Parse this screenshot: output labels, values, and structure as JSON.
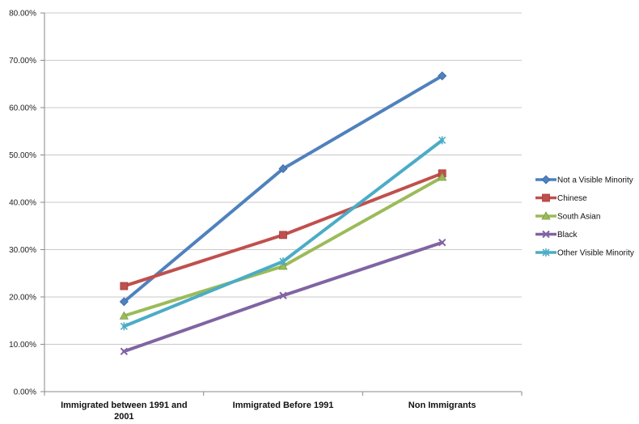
{
  "chart_data": {
    "type": "line",
    "title": "",
    "xlabel": "",
    "ylabel": "",
    "ylim": [
      0,
      0.8
    ],
    "y_ticks": [
      "0.00%",
      "10.00%",
      "20.00%",
      "30.00%",
      "40.00%",
      "50.00%",
      "60.00%",
      "70.00%",
      "80.00%"
    ],
    "categories": [
      [
        "Immigrated between 1991 and",
        "2001"
      ],
      [
        "Immigrated Before  1991"
      ],
      [
        "Non Immigrants"
      ]
    ],
    "grid": true,
    "legend_position": "right",
    "series": [
      {
        "name": "Not a Visible Minority",
        "color": "#4f81bd",
        "marker": "diamond",
        "values": [
          0.19,
          0.471,
          0.667
        ]
      },
      {
        "name": "Chinese",
        "color": "#c0504d",
        "marker": "square",
        "values": [
          0.223,
          0.331,
          0.461
        ]
      },
      {
        "name": "South Asian",
        "color": "#9bbb59",
        "marker": "triangle",
        "values": [
          0.16,
          0.265,
          0.453
        ]
      },
      {
        "name": "Black",
        "color": "#8064a2",
        "marker": "x",
        "values": [
          0.085,
          0.203,
          0.315
        ]
      },
      {
        "name": "Other Visible Minority",
        "color": "#4bacc6",
        "marker": "star",
        "values": [
          0.138,
          0.275,
          0.531
        ]
      }
    ]
  }
}
